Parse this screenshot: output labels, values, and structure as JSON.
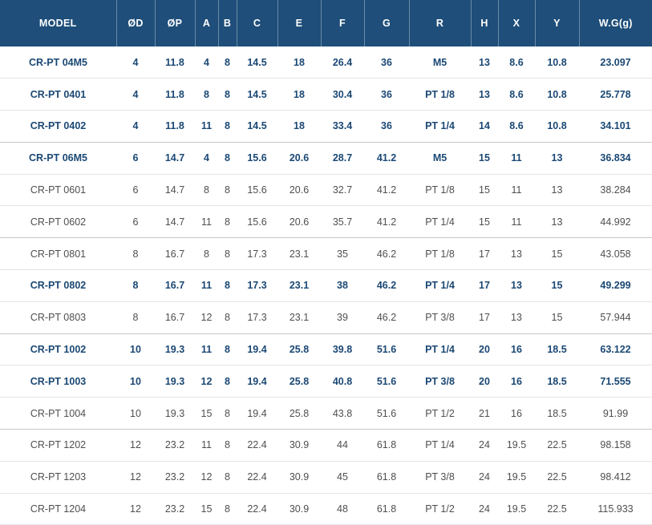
{
  "colors": {
    "header_bg": "#1E4E79",
    "header_text": "#FFFFFF",
    "header_divider": "rgba(255,255,255,0.35)",
    "emphasis_text": "#1B4874",
    "normal_text": "#4F4F4F",
    "row_border": "#E4E4E4",
    "group_border": "#C6C6C6",
    "row_bg": "#FFFFFF"
  },
  "table": {
    "columns": [
      {
        "key": "model",
        "label": "MODEL"
      },
      {
        "key": "od",
        "label": "ØD"
      },
      {
        "key": "op",
        "label": "ØP"
      },
      {
        "key": "a",
        "label": "A"
      },
      {
        "key": "b",
        "label": "B"
      },
      {
        "key": "c",
        "label": "C"
      },
      {
        "key": "e",
        "label": "E"
      },
      {
        "key": "f",
        "label": "F"
      },
      {
        "key": "g",
        "label": "G"
      },
      {
        "key": "r",
        "label": "R"
      },
      {
        "key": "h",
        "label": "H"
      },
      {
        "key": "x",
        "label": "X"
      },
      {
        "key": "y",
        "label": "Y"
      },
      {
        "key": "wg",
        "label": "W.G(g)"
      }
    ],
    "rows": [
      {
        "emphasis": true,
        "group_start": false,
        "cells": [
          "CR-PT 04M5",
          "4",
          "11.8",
          "4",
          "8",
          "14.5",
          "18",
          "26.4",
          "36",
          "M5",
          "13",
          "8.6",
          "10.8",
          "23.097"
        ]
      },
      {
        "emphasis": true,
        "group_start": false,
        "cells": [
          "CR-PT 0401",
          "4",
          "11.8",
          "8",
          "8",
          "14.5",
          "18",
          "30.4",
          "36",
          "PT 1/8",
          "13",
          "8.6",
          "10.8",
          "25.778"
        ]
      },
      {
        "emphasis": true,
        "group_start": false,
        "cells": [
          "CR-PT 0402",
          "4",
          "11.8",
          "11",
          "8",
          "14.5",
          "18",
          "33.4",
          "36",
          "PT 1/4",
          "14",
          "8.6",
          "10.8",
          "34.101"
        ]
      },
      {
        "emphasis": true,
        "group_start": true,
        "cells": [
          "CR-PT 06M5",
          "6",
          "14.7",
          "4",
          "8",
          "15.6",
          "20.6",
          "28.7",
          "41.2",
          "M5",
          "15",
          "11",
          "13",
          "36.834"
        ]
      },
      {
        "emphasis": false,
        "group_start": false,
        "cells": [
          "CR-PT 0601",
          "6",
          "14.7",
          "8",
          "8",
          "15.6",
          "20.6",
          "32.7",
          "41.2",
          "PT 1/8",
          "15",
          "11",
          "13",
          "38.284"
        ]
      },
      {
        "emphasis": false,
        "group_start": false,
        "cells": [
          "CR-PT 0602",
          "6",
          "14.7",
          "11",
          "8",
          "15.6",
          "20.6",
          "35.7",
          "41.2",
          "PT 1/4",
          "15",
          "11",
          "13",
          "44.992"
        ]
      },
      {
        "emphasis": false,
        "group_start": true,
        "cells": [
          "CR-PT 0801",
          "8",
          "16.7",
          "8",
          "8",
          "17.3",
          "23.1",
          "35",
          "46.2",
          "PT 1/8",
          "17",
          "13",
          "15",
          "43.058"
        ]
      },
      {
        "emphasis": true,
        "group_start": false,
        "cells": [
          "CR-PT 0802",
          "8",
          "16.7",
          "11",
          "8",
          "17.3",
          "23.1",
          "38",
          "46.2",
          "PT 1/4",
          "17",
          "13",
          "15",
          "49.299"
        ]
      },
      {
        "emphasis": false,
        "group_start": false,
        "cells": [
          "CR-PT 0803",
          "8",
          "16.7",
          "12",
          "8",
          "17.3",
          "23.1",
          "39",
          "46.2",
          "PT 3/8",
          "17",
          "13",
          "15",
          "57.944"
        ]
      },
      {
        "emphasis": true,
        "group_start": true,
        "cells": [
          "CR-PT 1002",
          "10",
          "19.3",
          "11",
          "8",
          "19.4",
          "25.8",
          "39.8",
          "51.6",
          "PT 1/4",
          "20",
          "16",
          "18.5",
          "63.122"
        ]
      },
      {
        "emphasis": true,
        "group_start": false,
        "cells": [
          "CR-PT 1003",
          "10",
          "19.3",
          "12",
          "8",
          "19.4",
          "25.8",
          "40.8",
          "51.6",
          "PT 3/8",
          "20",
          "16",
          "18.5",
          "71.555"
        ]
      },
      {
        "emphasis": false,
        "group_start": false,
        "cells": [
          "CR-PT 1004",
          "10",
          "19.3",
          "15",
          "8",
          "19.4",
          "25.8",
          "43.8",
          "51.6",
          "PT 1/2",
          "21",
          "16",
          "18.5",
          "91.99"
        ]
      },
      {
        "emphasis": false,
        "group_start": true,
        "cells": [
          "CR-PT 1202",
          "12",
          "23.2",
          "11",
          "8",
          "22.4",
          "30.9",
          "44",
          "61.8",
          "PT 1/4",
          "24",
          "19.5",
          "22.5",
          "98.158"
        ]
      },
      {
        "emphasis": false,
        "group_start": false,
        "cells": [
          "CR-PT 1203",
          "12",
          "23.2",
          "12",
          "8",
          "22.4",
          "30.9",
          "45",
          "61.8",
          "PT 3/8",
          "24",
          "19.5",
          "22.5",
          "98.412"
        ]
      },
      {
        "emphasis": false,
        "group_start": false,
        "cells": [
          "CR-PT 1204",
          "12",
          "23.2",
          "15",
          "8",
          "22.4",
          "30.9",
          "48",
          "61.8",
          "PT 1/2",
          "24",
          "19.5",
          "22.5",
          "115.933"
        ]
      }
    ]
  }
}
